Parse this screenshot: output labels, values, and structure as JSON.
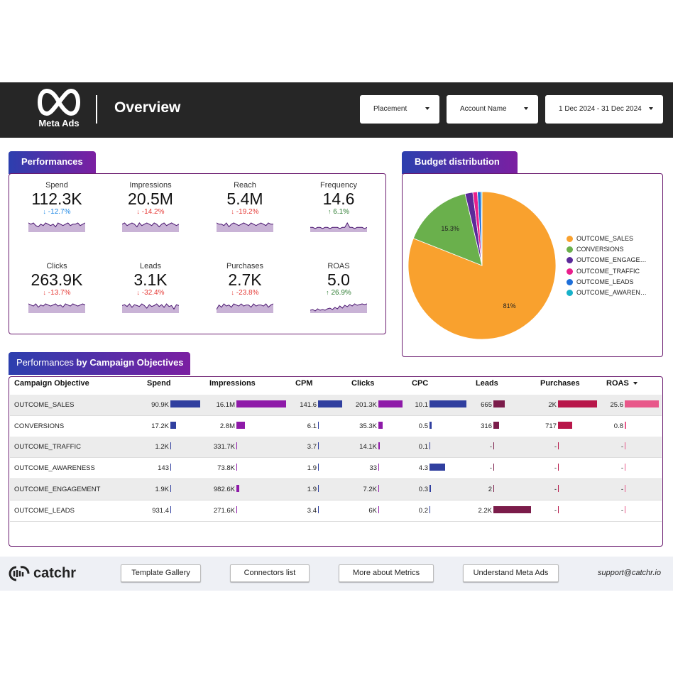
{
  "header": {
    "logo_text": "Meta Ads",
    "title": "Overview",
    "filters": {
      "placement": "Placement",
      "account": "Account Name",
      "date_range": "1 Dec 2024 - 31 Dec 2024"
    }
  },
  "performances": {
    "tab_label": "Performances",
    "kpis": [
      {
        "label": "Spend",
        "value": "112.3K",
        "delta": "-12.7%",
        "trend": "down",
        "color": "blue"
      },
      {
        "label": "Impressions",
        "value": "20.5M",
        "delta": "-14.2%",
        "trend": "down",
        "color": "red"
      },
      {
        "label": "Reach",
        "value": "5.4M",
        "delta": "-19.2%",
        "trend": "down",
        "color": "red"
      },
      {
        "label": "Frequency",
        "value": "14.6",
        "delta": "6.1%",
        "trend": "up",
        "color": "green"
      },
      {
        "label": "Clicks",
        "value": "263.9K",
        "delta": "-13.7%",
        "trend": "down",
        "color": "red"
      },
      {
        "label": "Leads",
        "value": "3.1K",
        "delta": "-32.4%",
        "trend": "down",
        "color": "red"
      },
      {
        "label": "Purchases",
        "value": "2.7K",
        "delta": "-23.8%",
        "trend": "down",
        "color": "red"
      },
      {
        "label": "ROAS",
        "value": "5.0",
        "delta": "26.9%",
        "trend": "up",
        "color": "green"
      }
    ]
  },
  "budget": {
    "tab_label": "Budget distribution",
    "chart_data": {
      "type": "pie",
      "slices": [
        {
          "name": "OUTCOME_SALES",
          "value": 81,
          "color": "#f9a12e",
          "label": "81%"
        },
        {
          "name": "CONVERSIONS",
          "value": 15.3,
          "color": "#6ab04c",
          "label": "15.3%"
        },
        {
          "name": "OUTCOME_ENGAGE…",
          "value": 1.7,
          "color": "#5b2a9a",
          "label": ""
        },
        {
          "name": "OUTCOME_TRAFFIC",
          "value": 1.0,
          "color": "#e91e8c",
          "label": ""
        },
        {
          "name": "OUTCOME_LEADS",
          "value": 0.8,
          "color": "#1e6fd9",
          "label": ""
        },
        {
          "name": "OUTCOME_AWAREN…",
          "value": 0.2,
          "color": "#17b1c9",
          "label": ""
        }
      ],
      "legend_position": "right"
    }
  },
  "objectives": {
    "tab_label_part1": "Performances",
    "tab_label_part2": "by Campaign Objectives",
    "columns": [
      "Campaign Objective",
      "Spend",
      "Impressions",
      "CPM",
      "Clicks",
      "CPC",
      "Leads",
      "Purchases",
      "ROAS"
    ],
    "rows": [
      {
        "name": "OUTCOME_SALES",
        "spend": "90.9K",
        "spend_v": 90900,
        "impr": "16.1M",
        "impr_v": 16.1,
        "cpm": "141.6",
        "cpm_v": 141.6,
        "clicks": "201.3K",
        "clicks_v": 201.3,
        "cpc": "10.1",
        "cpc_v": 10.1,
        "leads": "665",
        "leads_v": 665,
        "purch": "2K",
        "purch_v": 2000,
        "roas": "25.6",
        "roas_v": 25.6
      },
      {
        "name": "CONVERSIONS",
        "spend": "17.2K",
        "spend_v": 17200,
        "impr": "2.8M",
        "impr_v": 2.8,
        "cpm": "6.1",
        "cpm_v": 6.1,
        "clicks": "35.3K",
        "clicks_v": 35.3,
        "cpc": "0.5",
        "cpc_v": 0.5,
        "leads": "316",
        "leads_v": 316,
        "purch": "717",
        "purch_v": 717,
        "roas": "0.8",
        "roas_v": 0.8
      },
      {
        "name": "OUTCOME_TRAFFIC",
        "spend": "1.2K",
        "spend_v": 1200,
        "impr": "331.7K",
        "impr_v": 0.3317,
        "cpm": "3.7",
        "cpm_v": 3.7,
        "clicks": "14.1K",
        "clicks_v": 14.1,
        "cpc": "0.1",
        "cpc_v": 0.1,
        "leads": "-",
        "leads_v": 0,
        "purch": "-",
        "purch_v": 0,
        "roas": "-",
        "roas_v": 0
      },
      {
        "name": "OUTCOME_AWARENESS",
        "spend": "143",
        "spend_v": 143,
        "impr": "73.8K",
        "impr_v": 0.0738,
        "cpm": "1.9",
        "cpm_v": 1.9,
        "clicks": "33",
        "clicks_v": 0.033,
        "cpc": "4.3",
        "cpc_v": 4.3,
        "leads": "-",
        "leads_v": 0,
        "purch": "-",
        "purch_v": 0,
        "roas": "-",
        "roas_v": 0
      },
      {
        "name": "OUTCOME_ENGAGEMENT",
        "spend": "1.9K",
        "spend_v": 1900,
        "impr": "982.6K",
        "impr_v": 0.9826,
        "cpm": "1.9",
        "cpm_v": 1.9,
        "clicks": "7.2K",
        "clicks_v": 7.2,
        "cpc": "0.3",
        "cpc_v": 0.3,
        "leads": "2",
        "leads_v": 2,
        "purch": "-",
        "purch_v": 0,
        "roas": "-",
        "roas_v": 0
      },
      {
        "name": "OUTCOME_LEADS",
        "spend": "931.4",
        "spend_v": 931.4,
        "impr": "271.6K",
        "impr_v": 0.2716,
        "cpm": "3.4",
        "cpm_v": 3.4,
        "clicks": "6K",
        "clicks_v": 6.0,
        "cpc": "0.2",
        "cpc_v": 0.2,
        "leads": "2.2K",
        "leads_v": 2200,
        "purch": "-",
        "purch_v": 0,
        "roas": "-",
        "roas_v": 0
      }
    ],
    "bar_colors": {
      "spend": "#303f9f",
      "impr": "#8e1aa8",
      "cpm": "#303f9f",
      "clicks": "#8e1aa8",
      "cpc": "#303f9f",
      "leads": "#7b1c4a",
      "purch": "#b8174a",
      "roas": "#e8588a"
    }
  },
  "footer": {
    "brand": "catchr",
    "buttons": [
      "Template Gallery",
      "Connectors list",
      "More about Metrics",
      "Understand Meta Ads"
    ],
    "support": "support@catchr.io"
  }
}
